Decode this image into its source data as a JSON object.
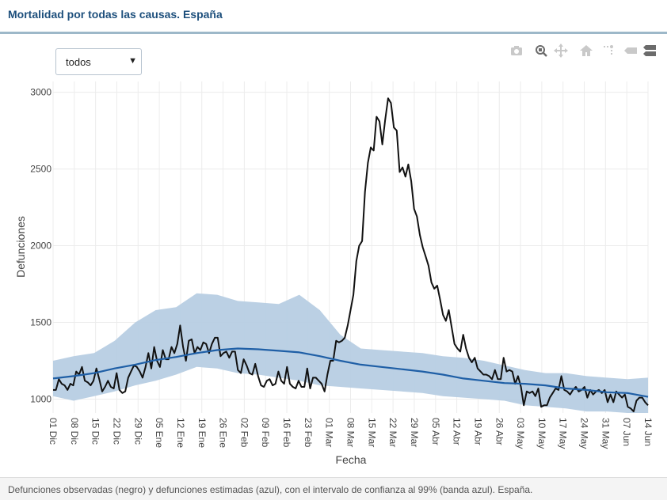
{
  "header": {
    "title": "Mortalidad por todas las causas. España"
  },
  "selector": {
    "value": "todos"
  },
  "toolbar": {
    "icons": [
      "camera-icon",
      "zoom-icon",
      "pan-icon",
      "home-icon",
      "spike-lines-icon",
      "hover-closest-icon",
      "hover-compare-icon"
    ]
  },
  "footer": {
    "caption": "Defunciones observadas (negro) y defunciones estimadas (azul), con el intervalo de confianza al 99% (banda azul). España."
  },
  "colors": {
    "observed": "#111111",
    "expected": "#1f5fa6",
    "band": "#b7cde3",
    "title": "#1d4f7c"
  },
  "chart_data": {
    "type": "line",
    "title": "",
    "xlabel": "Fecha",
    "ylabel": "Defunciones",
    "x_start": "2019-12-01",
    "x_end": "2020-06-14",
    "ylim": [
      910,
      3070
    ],
    "yticks": [
      1000,
      1500,
      2000,
      2500,
      3000
    ],
    "xticks": [
      "01 Dic",
      "08 Dic",
      "15 Dic",
      "22 Dic",
      "29 Dic",
      "05 Ene",
      "12 Ene",
      "19 Ene",
      "26 Ene",
      "02 Feb",
      "09 Feb",
      "16 Feb",
      "23 Feb",
      "01 Mar",
      "08 Mar",
      "15 Mar",
      "22 Mar",
      "29 Mar",
      "05 Abr",
      "12 Abr",
      "19 Abr",
      "26 Abr",
      "03 May",
      "10 May",
      "17 May",
      "24 May",
      "31 May",
      "07 Jun",
      "14 Jun"
    ],
    "grid": true,
    "series": [
      {
        "name": "Defunciones observadas",
        "color": "#111111",
        "values": [
          1060,
          1060,
          1130,
          1100,
          1090,
          1060,
          1100,
          1090,
          1180,
          1160,
          1210,
          1120,
          1110,
          1090,
          1120,
          1200,
          1130,
          1050,
          1080,
          1120,
          1080,
          1070,
          1170,
          1060,
          1040,
          1050,
          1140,
          1180,
          1220,
          1210,
          1180,
          1140,
          1210,
          1300,
          1200,
          1340,
          1250,
          1210,
          1320,
          1260,
          1260,
          1340,
          1300,
          1360,
          1480,
          1340,
          1250,
          1380,
          1390,
          1300,
          1340,
          1320,
          1370,
          1360,
          1300,
          1360,
          1400,
          1400,
          1280,
          1300,
          1310,
          1270,
          1310,
          1310,
          1190,
          1170,
          1260,
          1220,
          1170,
          1160,
          1230,
          1150,
          1090,
          1080,
          1120,
          1130,
          1090,
          1100,
          1180,
          1120,
          1100,
          1210,
          1100,
          1080,
          1070,
          1120,
          1080,
          1080,
          1200,
          1070,
          1140,
          1140,
          1120,
          1100,
          1050,
          1160,
          1250,
          1250,
          1380,
          1370,
          1380,
          1400,
          1480,
          1580,
          1680,
          1900,
          2000,
          2030,
          2350,
          2540,
          2640,
          2620,
          2840,
          2810,
          2660,
          2820,
          2960,
          2930,
          2770,
          2750,
          2480,
          2510,
          2450,
          2530,
          2420,
          2240,
          2190,
          2070,
          1990,
          1930,
          1870,
          1760,
          1720,
          1740,
          1650,
          1550,
          1510,
          1580,
          1470,
          1360,
          1330,
          1310,
          1420,
          1330,
          1270,
          1240,
          1270,
          1200,
          1180,
          1160,
          1160,
          1150,
          1130,
          1190,
          1130,
          1130,
          1270,
          1180,
          1190,
          1180,
          1100,
          1150,
          1080,
          960,
          1050,
          1040,
          1050,
          1020,
          1070,
          950,
          960,
          960,
          1010,
          1040,
          1070,
          1060,
          1150,
          1060,
          1050,
          1030,
          1060,
          1080,
          1050,
          1060,
          1080,
          1010,
          1060,
          1030,
          1050,
          1060,
          1040,
          1060,
          980,
          1030,
          980,
          1050,
          1030,
          1010,
          1030,
          950,
          940,
          920,
          990,
          1010,
          1010,
          980,
          960
        ]
      },
      {
        "name": "Defunciones estimadas",
        "color": "#1f5fa6",
        "values": [
          1135,
          1150,
          1170,
          1200,
          1225,
          1255,
          1275,
          1300,
          1320,
          1330,
          1325,
          1315,
          1305,
          1280,
          1250,
          1225,
          1210,
          1195,
          1180,
          1160,
          1135,
          1120,
          1105,
          1100,
          1090,
          1070,
          1060,
          1045,
          1040,
          1015
        ]
      }
    ],
    "band": {
      "lower": [
        1020,
        990,
        1020,
        1050,
        1090,
        1120,
        1160,
        1210,
        1200,
        1170,
        1160,
        1140,
        1120,
        1090,
        1080,
        1070,
        1060,
        1050,
        1040,
        1020,
        1010,
        1000,
        990,
        960,
        950,
        940,
        920,
        920,
        910,
        910
      ],
      "upper": [
        1250,
        1280,
        1300,
        1380,
        1500,
        1580,
        1600,
        1690,
        1680,
        1640,
        1630,
        1620,
        1680,
        1580,
        1420,
        1330,
        1320,
        1310,
        1300,
        1280,
        1270,
        1250,
        1220,
        1190,
        1170,
        1170,
        1150,
        1140,
        1130,
        1140
      ]
    }
  }
}
